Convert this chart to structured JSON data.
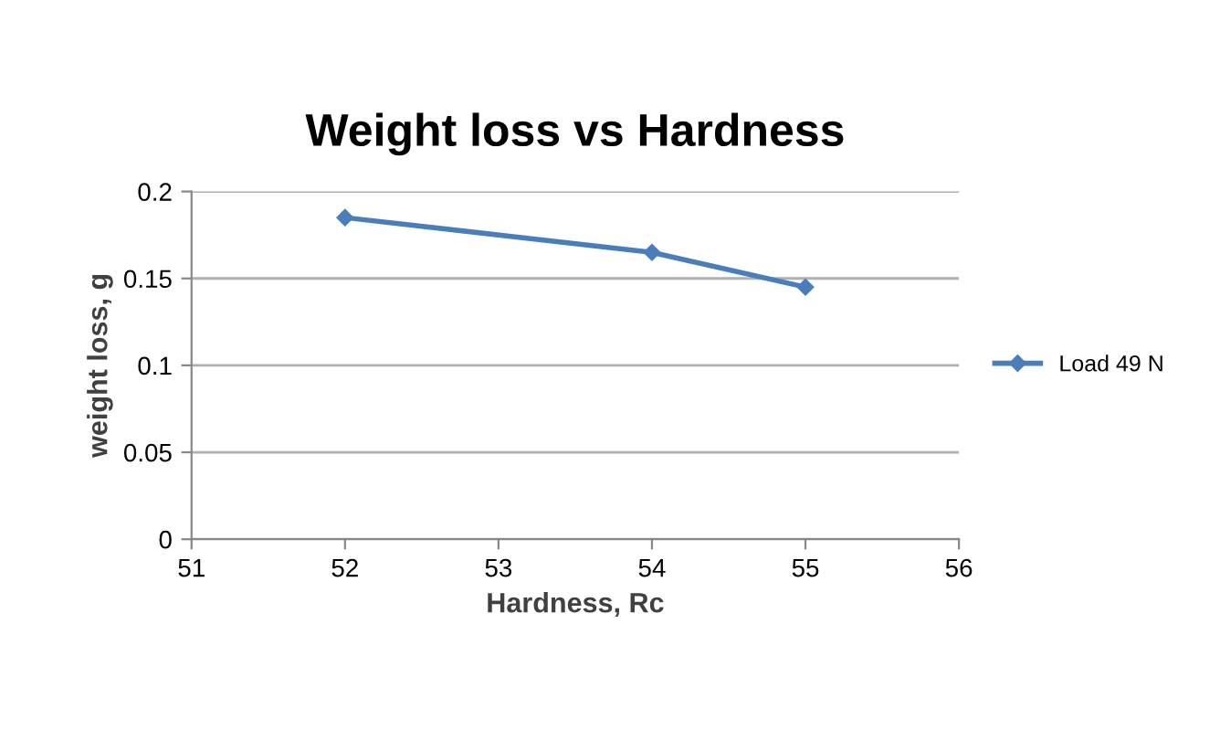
{
  "chart_data": {
    "type": "line",
    "title": "Weight loss vs Hardness",
    "xlabel": "Hardness, Rc",
    "ylabel": "weight loss, g",
    "series": [
      {
        "name": "Load 49 N",
        "color": "#4a7ebb",
        "x": [
          52,
          54,
          55
        ],
        "values": [
          0.185,
          0.165,
          0.145
        ]
      }
    ],
    "xlim": [
      51,
      56
    ],
    "xticks": [
      51,
      52,
      53,
      54,
      55,
      56
    ],
    "ylim": [
      0,
      0.2
    ],
    "yticks": [
      0,
      0.05,
      0.1,
      0.15,
      0.2
    ],
    "grid": "y",
    "legend": "right",
    "marker": "diamond",
    "line_style": "solid"
  }
}
